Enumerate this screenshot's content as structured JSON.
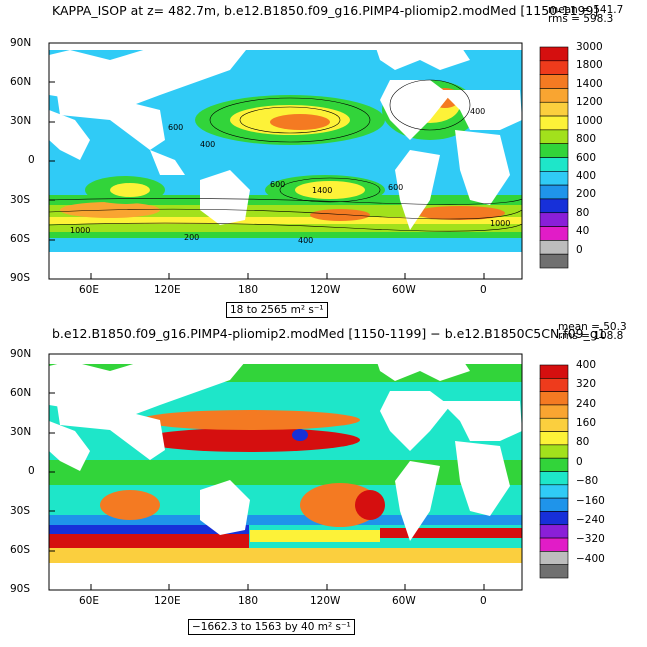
{
  "panels": [
    {
      "title": "KAPPA_ISOP at z= 482.7m, b.e12.B1850.f09_g16.PIMP4-pliomip2.modMed [1150-1199]",
      "mean_label": "mean = 541.7",
      "rms_label": "rms = 598.3",
      "range_label": "18 to 2565 m² s⁻¹",
      "colorbar_labels": [
        "3000",
        "1800",
        "1400",
        "1200",
        "1000",
        "800",
        "600",
        "400",
        "200",
        "80",
        "40",
        "0"
      ],
      "colors": [
        "#d50f0f",
        "#ee3b1c",
        "#f47a22",
        "#f9a531",
        "#fbcf3e",
        "#fdf238",
        "#a2e11c",
        "#32d43a",
        "#1ee6c9",
        "#30cbf6",
        "#1f94ea",
        "#1730d9",
        "#8a1fd8",
        "#e11cc7",
        "#bdbdbd",
        "#707070"
      ],
      "contour_labels": [
        "600",
        "400",
        "600",
        "1400",
        "1000",
        "1000",
        "400",
        "600",
        "400",
        "200"
      ]
    },
    {
      "title": "b.e12.B1850.f09_g16.PIMP4-pliomip2.modMed [1150-1199] − b.e12.B1850C5CN.f09_g1",
      "mean_label": "mean = 50.3",
      "rms_label": "rms = 108.8",
      "range_label": "−1662.3 to 1563 by 40 m² s⁻¹",
      "colorbar_labels": [
        "400",
        "320",
        "240",
        "160",
        "80",
        "0",
        "−80",
        "−160",
        "−240",
        "−320",
        "−400"
      ],
      "colors": [
        "#d50f0f",
        "#ee3b1c",
        "#f47a22",
        "#f9a531",
        "#fbcf3e",
        "#fdf238",
        "#a2e11c",
        "#32d43a",
        "#1ee6c9",
        "#30cbf6",
        "#1f94ea",
        "#1730d9",
        "#8a1fd8",
        "#e11cc7",
        "#bdbdbd",
        "#707070"
      ]
    }
  ],
  "lat_labels": [
    "90N",
    "60N",
    "30N",
    "0",
    "30S",
    "60S",
    "90S"
  ],
  "lon_labels": [
    "60E",
    "120E",
    "180",
    "120W",
    "60W",
    "0"
  ],
  "colors": {
    "ocean_base": "#30cbf6",
    "land": "#ffffff",
    "frame": "#000000"
  }
}
